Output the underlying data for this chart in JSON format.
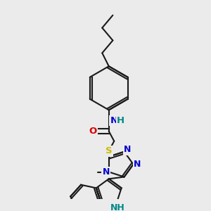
{
  "bg_color": "#ebebeb",
  "bond_color": "#1a1a1a",
  "bond_lw": 1.5,
  "colors": {
    "O": "#dd0000",
    "N": "#0000cc",
    "S": "#ccbb00",
    "NH": "#008888",
    "C": "#1a1a1a"
  },
  "figsize": [
    3.0,
    3.0
  ],
  "dpi": 100
}
